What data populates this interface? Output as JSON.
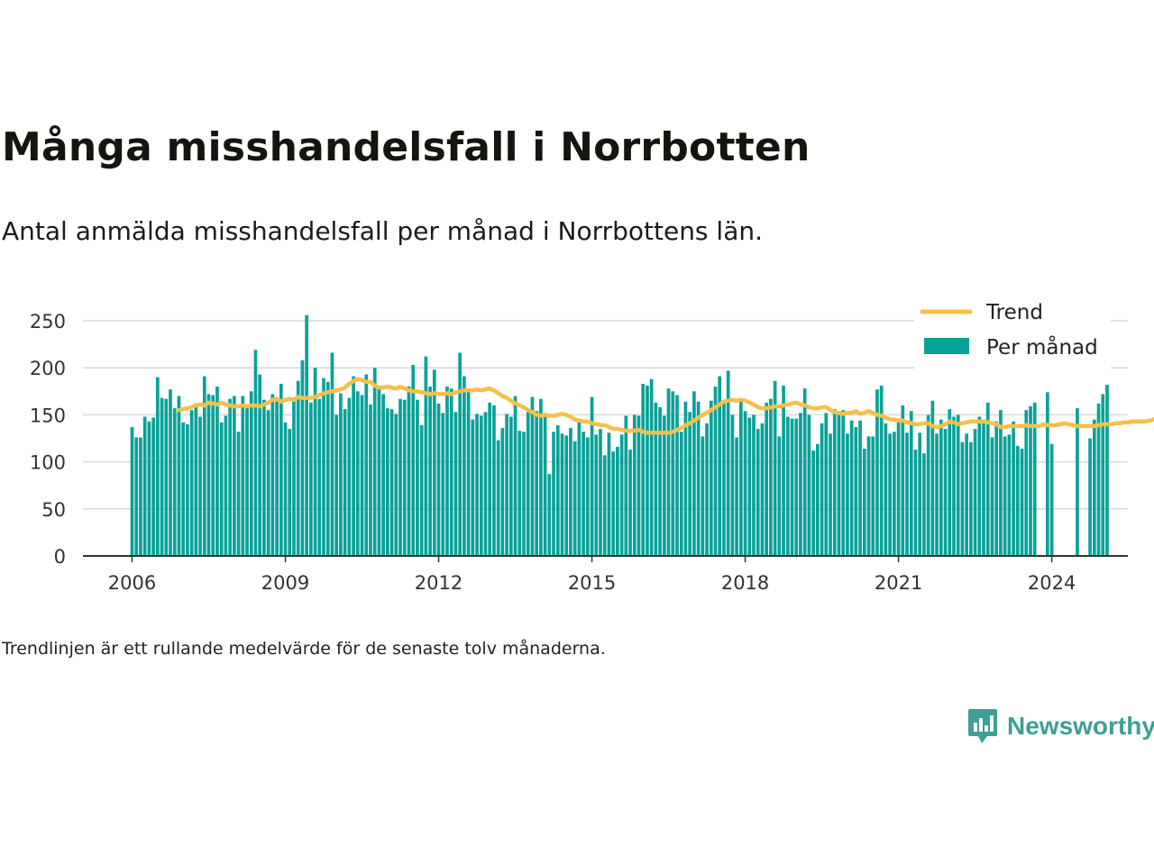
{
  "title": "Många misshandelsfall i Norrbotten",
  "subtitle": "Antal anmälda misshandelsfall per månad i Norrbottens län.",
  "note": "Trendlinjen är ett rullande medelvärde för de senaste tolv månaderna.",
  "brand": {
    "name": "Newsworthy",
    "icon": "newsworthy-logo-icon"
  },
  "colors": {
    "bars": "#0aa198",
    "trend": "#f5c04a",
    "grid": "#d9d9d9",
    "axis": "#333333"
  },
  "chart_data": {
    "type": "bar",
    "title": "Många misshandelsfall i Norrbotten",
    "xlabel": "",
    "ylabel": "",
    "ylim": [
      0,
      250
    ],
    "y_ticks": [
      0,
      50,
      100,
      150,
      200,
      250
    ],
    "x_ticks": [
      2006,
      2009,
      2012,
      2015,
      2018,
      2021,
      2024
    ],
    "x_tick_labels": [
      "2006",
      "2009",
      "2012",
      "2015",
      "2018",
      "2021",
      "2024"
    ],
    "grid": true,
    "legend_position": "top-right",
    "start": "2006-01",
    "frequency": "monthly",
    "series": [
      {
        "name": "Per månad",
        "type": "bar",
        "values": [
          137,
          126,
          126,
          148,
          143,
          147,
          190,
          168,
          167,
          177,
          157,
          170,
          142,
          140,
          155,
          162,
          148,
          191,
          172,
          171,
          180,
          142,
          149,
          167,
          170,
          132,
          170,
          160,
          175,
          219,
          193,
          166,
          155,
          172,
          164,
          183,
          142,
          135,
          167,
          186,
          208,
          256,
          163,
          200,
          167,
          189,
          185,
          216,
          150,
          173,
          156,
          168,
          191,
          175,
          171,
          193,
          161,
          200,
          181,
          172,
          157,
          156,
          151,
          167,
          166,
          180,
          203,
          166,
          139,
          212,
          180,
          198,
          162,
          152,
          180,
          178,
          153,
          216,
          191,
          175,
          145,
          151,
          149,
          153,
          163,
          160,
          123,
          136,
          151,
          148,
          170,
          133,
          132,
          153,
          169,
          154,
          167,
          148,
          87,
          132,
          139,
          130,
          128,
          136,
          122,
          146,
          132,
          126,
          169,
          129,
          135,
          107,
          131,
          111,
          116,
          129,
          149,
          113,
          150,
          149,
          183,
          181,
          188,
          163,
          158,
          149,
          178,
          175,
          171,
          132,
          164,
          153,
          175,
          164,
          127,
          141,
          165,
          180,
          191,
          164,
          197,
          150,
          126,
          165,
          154,
          147,
          150,
          135,
          141,
          163,
          167,
          186,
          127,
          181,
          148,
          146,
          146,
          152,
          178,
          150,
          112,
          119,
          141,
          152,
          130,
          156,
          150,
          155,
          130,
          144,
          137,
          144,
          114,
          127,
          127,
          177,
          181,
          141,
          130,
          132,
          142,
          160,
          131,
          154,
          113,
          131,
          109,
          150,
          165,
          130,
          145,
          135,
          156,
          148,
          150,
          121,
          130,
          121,
          135,
          148,
          145,
          163,
          126,
          143,
          155,
          127,
          129,
          143,
          117,
          114,
          155,
          159,
          163,
          0,
          0,
          174,
          119,
          0,
          0,
          0,
          0,
          0,
          157,
          0,
          0,
          125,
          145,
          162,
          172,
          182
        ]
      },
      {
        "name": "Trend",
        "type": "line",
        "start": "2006-12",
        "values": [
          155,
          156,
          157,
          158,
          160,
          161,
          160,
          163,
          162,
          161,
          163,
          161,
          160,
          159,
          159,
          160,
          159,
          160,
          160,
          159,
          161,
          163,
          166,
          167,
          164,
          166,
          167,
          166,
          169,
          168,
          168,
          168,
          169,
          171,
          173,
          174,
          175,
          176,
          177,
          179,
          183,
          186,
          188,
          187,
          185,
          185,
          181,
          179,
          179,
          180,
          179,
          178,
          180,
          178,
          176,
          175,
          175,
          174,
          173,
          172,
          173,
          172,
          172,
          173,
          172,
          174,
          175,
          176,
          176,
          176,
          177,
          176,
          177,
          178,
          176,
          173,
          170,
          168,
          165,
          162,
          160,
          158,
          155,
          153,
          150,
          149,
          150,
          149,
          149,
          150,
          151,
          150,
          148,
          145,
          144,
          143,
          143,
          141,
          140,
          139,
          139,
          137,
          135,
          135,
          134,
          133,
          133,
          133,
          134,
          132,
          131,
          131,
          131,
          131,
          131,
          131,
          132,
          134,
          136,
          139,
          141,
          144,
          147,
          150,
          152,
          155,
          158,
          161,
          164,
          165,
          166,
          165,
          166,
          165,
          163,
          161,
          158,
          157,
          157,
          158,
          159,
          159,
          160,
          161,
          162,
          163,
          161,
          160,
          158,
          157,
          157,
          158,
          158,
          155,
          153,
          152,
          151,
          152,
          152,
          154,
          151,
          152,
          154,
          152,
          150,
          149,
          147,
          145,
          145,
          144,
          144,
          142,
          141,
          140,
          140,
          141,
          141,
          138,
          137,
          138,
          140,
          143,
          142,
          140,
          141,
          142,
          143,
          143,
          143,
          143,
          142,
          141,
          140,
          137,
          137,
          138,
          138,
          138,
          138,
          139,
          138,
          138,
          138,
          140,
          139,
          139,
          139,
          140,
          141,
          140,
          139,
          138,
          138,
          138,
          138,
          138,
          139,
          140,
          140,
          140,
          141,
          141,
          142,
          142,
          143,
          143,
          143,
          143,
          144,
          145,
          148,
          157
        ]
      }
    ]
  }
}
